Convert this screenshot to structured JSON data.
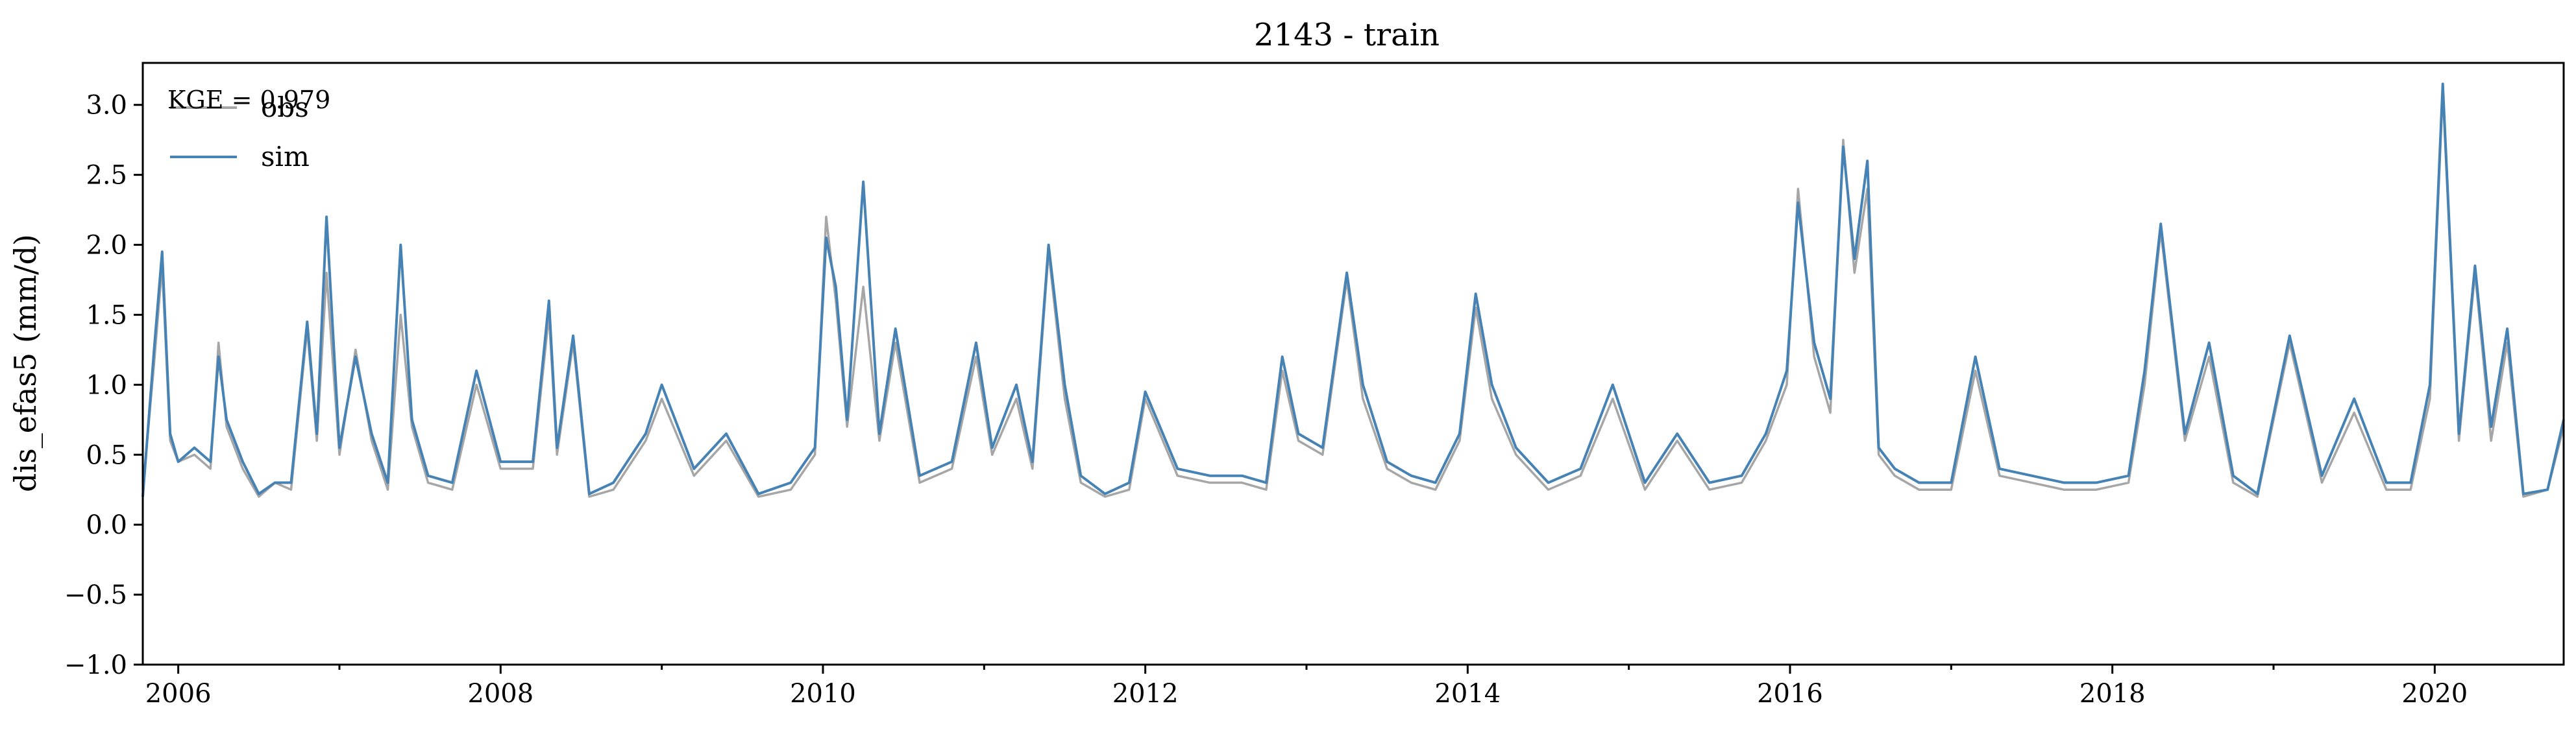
{
  "chart_data": {
    "type": "line",
    "title": "2143 - train",
    "xlabel": "",
    "ylabel": "dis_efas5 (mm/d)",
    "xlim": [
      2005.78,
      2020.8
    ],
    "ylim": [
      -1.0,
      3.3
    ],
    "xticks": [
      2006,
      2008,
      2010,
      2012,
      2014,
      2016,
      2018,
      2020
    ],
    "xtick_labels": [
      "2006",
      "2008",
      "2010",
      "2012",
      "2014",
      "2016",
      "2018",
      "2020"
    ],
    "yticks": [
      -1.0,
      -0.5,
      0.0,
      0.5,
      1.0,
      1.5,
      2.0,
      2.5,
      3.0
    ],
    "ytick_labels": [
      "−1.0",
      "−0.5",
      "0.0",
      "0.5",
      "1.0",
      "1.5",
      "2.0",
      "2.5",
      "3.0"
    ],
    "grid": false,
    "legend_position": "top-left",
    "annotation": "KGE = 0.979",
    "series": [
      {
        "name": "obs",
        "color": "#a6a6a6",
        "x": [
          2005.78,
          2005.85,
          2005.9,
          2005.95,
          2006.0,
          2006.1,
          2006.2,
          2006.25,
          2006.3,
          2006.4,
          2006.5,
          2006.6,
          2006.7,
          2006.8,
          2006.86,
          2006.92,
          2007.0,
          2007.1,
          2007.2,
          2007.3,
          2007.38,
          2007.45,
          2007.55,
          2007.7,
          2007.85,
          2008.0,
          2008.2,
          2008.3,
          2008.35,
          2008.45,
          2008.55,
          2008.7,
          2008.9,
          2009.0,
          2009.2,
          2009.4,
          2009.6,
          2009.8,
          2009.95,
          2010.02,
          2010.08,
          2010.15,
          2010.25,
          2010.35,
          2010.45,
          2010.6,
          2010.8,
          2010.95,
          2011.05,
          2011.2,
          2011.3,
          2011.4,
          2011.5,
          2011.6,
          2011.75,
          2011.9,
          2012.0,
          2012.2,
          2012.4,
          2012.6,
          2012.75,
          2012.85,
          2012.95,
          2013.1,
          2013.25,
          2013.35,
          2013.5,
          2013.65,
          2013.8,
          2013.95,
          2014.05,
          2014.15,
          2014.3,
          2014.5,
          2014.7,
          2014.9,
          2015.1,
          2015.3,
          2015.5,
          2015.7,
          2015.85,
          2015.98,
          2016.05,
          2016.15,
          2016.25,
          2016.33,
          2016.4,
          2016.48,
          2016.55,
          2016.65,
          2016.8,
          2017.0,
          2017.15,
          2017.3,
          2017.5,
          2017.7,
          2017.9,
          2018.1,
          2018.2,
          2018.3,
          2018.45,
          2018.6,
          2018.75,
          2018.9,
          2019.1,
          2019.3,
          2019.5,
          2019.7,
          2019.85,
          2019.97,
          2020.05,
          2020.15,
          2020.25,
          2020.35,
          2020.45,
          2020.55,
          2020.7,
          2020.8
        ],
        "y": [
          0.25,
          1.15,
          1.85,
          0.6,
          0.45,
          0.5,
          0.4,
          1.3,
          0.7,
          0.4,
          0.2,
          0.3,
          0.25,
          1.4,
          0.6,
          1.8,
          0.5,
          1.25,
          0.6,
          0.25,
          1.5,
          0.7,
          0.3,
          0.25,
          1.0,
          0.4,
          0.4,
          1.5,
          0.5,
          1.3,
          0.2,
          0.25,
          0.6,
          0.9,
          0.35,
          0.6,
          0.2,
          0.25,
          0.5,
          2.2,
          1.6,
          0.7,
          1.7,
          0.6,
          1.3,
          0.3,
          0.4,
          1.2,
          0.5,
          0.9,
          0.4,
          1.95,
          0.9,
          0.3,
          0.2,
          0.25,
          0.9,
          0.35,
          0.3,
          0.3,
          0.25,
          1.1,
          0.6,
          0.5,
          1.75,
          0.9,
          0.4,
          0.3,
          0.25,
          0.6,
          1.55,
          0.9,
          0.5,
          0.25,
          0.35,
          0.9,
          0.25,
          0.6,
          0.25,
          0.3,
          0.6,
          1.0,
          2.4,
          1.2,
          0.8,
          2.75,
          1.8,
          2.4,
          0.5,
          0.35,
          0.25,
          0.25,
          1.1,
          0.35,
          0.3,
          0.25,
          0.25,
          0.3,
          1.0,
          2.1,
          0.6,
          1.2,
          0.3,
          0.2,
          1.3,
          0.3,
          0.8,
          0.25,
          0.25,
          0.9,
          3.1,
          0.6,
          1.8,
          0.6,
          1.3,
          0.2,
          0.25,
          0.7
        ]
      },
      {
        "name": "sim",
        "color": "#4682b4",
        "x": [
          2005.78,
          2005.85,
          2005.9,
          2005.95,
          2006.0,
          2006.1,
          2006.2,
          2006.25,
          2006.3,
          2006.4,
          2006.5,
          2006.6,
          2006.7,
          2006.8,
          2006.86,
          2006.92,
          2007.0,
          2007.1,
          2007.2,
          2007.3,
          2007.38,
          2007.45,
          2007.55,
          2007.7,
          2007.85,
          2008.0,
          2008.2,
          2008.3,
          2008.35,
          2008.45,
          2008.55,
          2008.7,
          2008.9,
          2009.0,
          2009.2,
          2009.4,
          2009.6,
          2009.8,
          2009.95,
          2010.02,
          2010.08,
          2010.15,
          2010.25,
          2010.35,
          2010.45,
          2010.6,
          2010.8,
          2010.95,
          2011.05,
          2011.2,
          2011.3,
          2011.4,
          2011.5,
          2011.6,
          2011.75,
          2011.9,
          2012.0,
          2012.2,
          2012.4,
          2012.6,
          2012.75,
          2012.85,
          2012.95,
          2013.1,
          2013.25,
          2013.35,
          2013.5,
          2013.65,
          2013.8,
          2013.95,
          2014.05,
          2014.15,
          2014.3,
          2014.5,
          2014.7,
          2014.9,
          2015.1,
          2015.3,
          2015.5,
          2015.7,
          2015.85,
          2015.98,
          2016.05,
          2016.15,
          2016.25,
          2016.33,
          2016.4,
          2016.48,
          2016.55,
          2016.65,
          2016.8,
          2017.0,
          2017.15,
          2017.3,
          2017.5,
          2017.7,
          2017.9,
          2018.1,
          2018.2,
          2018.3,
          2018.45,
          2018.6,
          2018.75,
          2018.9,
          2019.1,
          2019.3,
          2019.5,
          2019.7,
          2019.85,
          2019.97,
          2020.05,
          2020.15,
          2020.25,
          2020.35,
          2020.45,
          2020.55,
          2020.7,
          2020.8
        ],
        "y": [
          0.2,
          1.25,
          1.95,
          0.65,
          0.45,
          0.55,
          0.45,
          1.2,
          0.75,
          0.45,
          0.22,
          0.3,
          0.3,
          1.45,
          0.65,
          2.2,
          0.55,
          1.2,
          0.65,
          0.3,
          2.0,
          0.75,
          0.35,
          0.3,
          1.1,
          0.45,
          0.45,
          1.6,
          0.55,
          1.35,
          0.22,
          0.3,
          0.65,
          1.0,
          0.4,
          0.65,
          0.22,
          0.3,
          0.55,
          2.05,
          1.7,
          0.75,
          2.45,
          0.65,
          1.4,
          0.35,
          0.45,
          1.3,
          0.55,
          1.0,
          0.45,
          2.0,
          1.0,
          0.35,
          0.22,
          0.3,
          0.95,
          0.4,
          0.35,
          0.35,
          0.3,
          1.2,
          0.65,
          0.55,
          1.8,
          1.0,
          0.45,
          0.35,
          0.3,
          0.65,
          1.65,
          1.0,
          0.55,
          0.3,
          0.4,
          1.0,
          0.3,
          0.65,
          0.3,
          0.35,
          0.65,
          1.1,
          2.3,
          1.3,
          0.9,
          2.7,
          1.9,
          2.6,
          0.55,
          0.4,
          0.3,
          0.3,
          1.2,
          0.4,
          0.35,
          0.3,
          0.3,
          0.35,
          1.1,
          2.15,
          0.65,
          1.3,
          0.35,
          0.22,
          1.35,
          0.35,
          0.9,
          0.3,
          0.3,
          1.0,
          3.15,
          0.65,
          1.85,
          0.7,
          1.4,
          0.22,
          0.25,
          0.75
        ]
      }
    ]
  }
}
